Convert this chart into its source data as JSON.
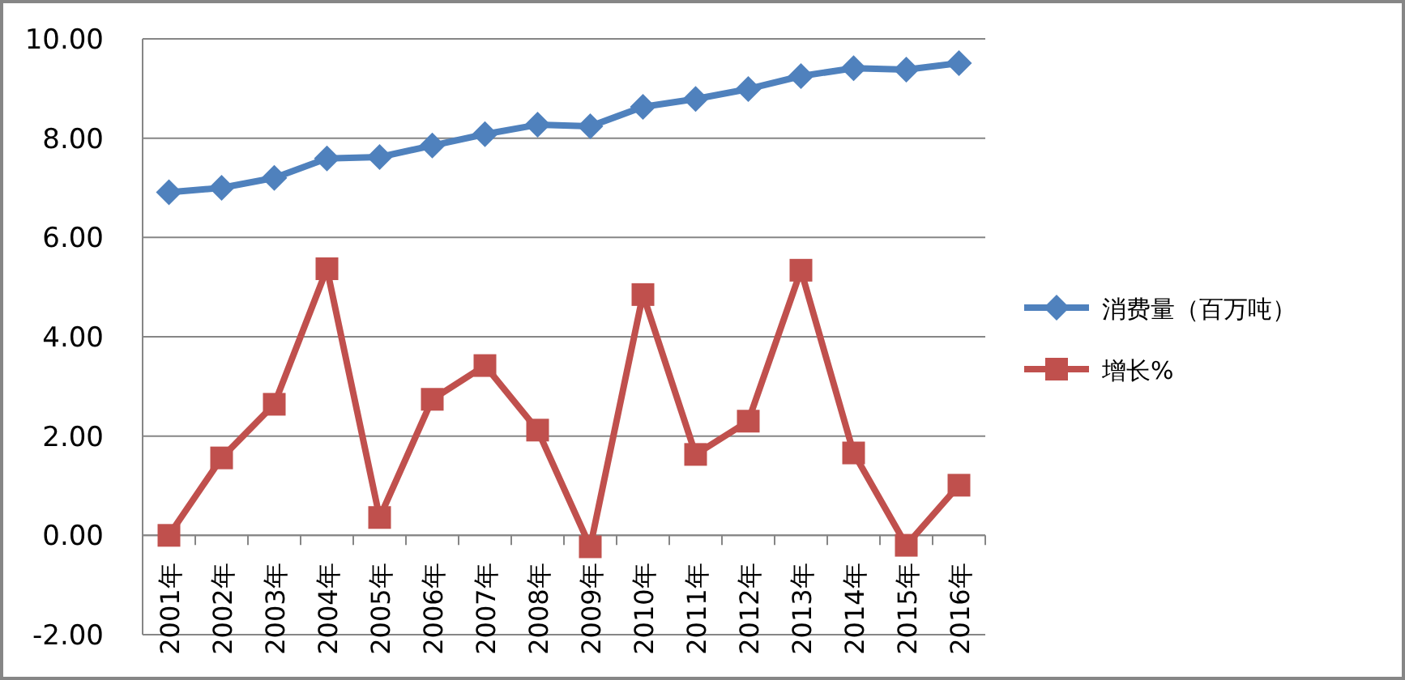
{
  "chart_data": {
    "type": "line",
    "categories": [
      "2001年",
      "2002年",
      "2003年",
      "2004年",
      "2005年",
      "2006年",
      "2007年",
      "2008年",
      "2009年",
      "2010年",
      "2011年",
      "2012年",
      "2013年",
      "2014年",
      "2015年",
      "2016年"
    ],
    "series": [
      {
        "name": "消费量（百万吨）",
        "color": "#4f81bd",
        "marker": "diamond",
        "values": [
          6.91,
          7.0,
          7.2,
          7.59,
          7.62,
          7.85,
          8.08,
          8.27,
          8.24,
          8.63,
          8.79,
          8.99,
          9.25,
          9.41,
          9.38,
          9.51
        ]
      },
      {
        "name": "增长%",
        "color": "#c0504d",
        "marker": "square",
        "values": [
          0,
          1.56,
          2.64,
          5.37,
          0.36,
          2.74,
          3.42,
          2.12,
          -0.23,
          4.85,
          1.63,
          2.3,
          5.34,
          1.66,
          -0.2,
          1.01
        ]
      }
    ],
    "ylim": [
      -2,
      10
    ],
    "yticks": [
      {
        "value": -2,
        "label": "-2.00"
      },
      {
        "value": 0,
        "label": "0.00"
      },
      {
        "value": 2,
        "label": "2.00"
      },
      {
        "value": 4,
        "label": "4.00"
      },
      {
        "value": 6,
        "label": "6.00"
      },
      {
        "value": 8,
        "label": "8.00"
      },
      {
        "value": 10,
        "label": "10.00"
      }
    ],
    "grid": "y",
    "legend": "right"
  }
}
